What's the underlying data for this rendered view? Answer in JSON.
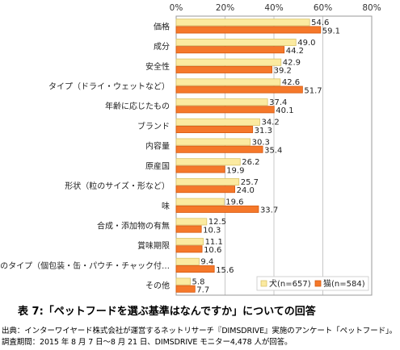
{
  "chart_data": {
    "type": "bar",
    "orientation": "horizontal",
    "categories": [
      "価格",
      "成分",
      "安全性",
      "タイプ（ドライ・ウェットなど）",
      "年齢に応じたもの",
      "ブランド",
      "内容量",
      "原産国",
      "形状（粒のサイズ・形など）",
      "味",
      "合成・添加物の有無",
      "賞味期限",
      "パッケージのタイプ（個包装・缶・パウチ・チャック付…",
      "その他"
    ],
    "series": [
      {
        "name": "犬(n=657)",
        "values": [
          54.6,
          49.0,
          42.9,
          42.6,
          37.4,
          34.2,
          30.3,
          26.2,
          25.7,
          19.6,
          12.5,
          11.1,
          9.4,
          5.8
        ]
      },
      {
        "name": "猫(n=584)",
        "values": [
          59.1,
          44.2,
          39.2,
          51.7,
          40.1,
          31.3,
          35.4,
          19.9,
          24.0,
          33.7,
          10.3,
          10.6,
          15.6,
          7.7
        ]
      }
    ],
    "xlim": [
      0,
      80
    ],
    "xticks": [
      "0%",
      "20%",
      "40%",
      "60%",
      "80%"
    ],
    "grid": true,
    "legend_position": "bottom-right",
    "colors": {
      "dog": "#fbeaa0",
      "dog_border": "#d9c46a",
      "cat": "#f5782a",
      "cat_border": "#d65a10"
    }
  },
  "caption": "表 7:「ペットフードを選ぶ基準はなんですか」についての回答",
  "footnotes": {
    "line1": "出典：インターワイヤード株式会社が運営するネットリサーチ『DIMSDRIVE』実施のアンケート「ペットフード」。",
    "line2": "調査期間：2015 年 8 月 7 日～8 月 21 日、DIMSDRIVE モニター4,478 人が回答。"
  }
}
